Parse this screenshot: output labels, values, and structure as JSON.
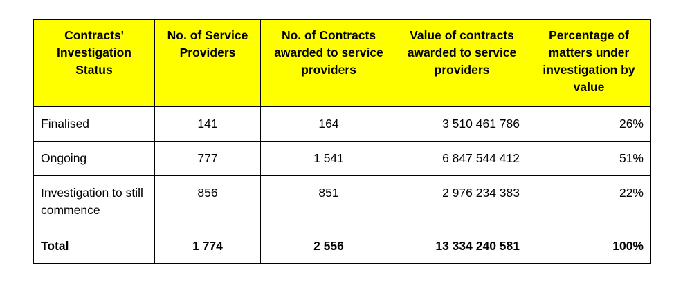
{
  "table": {
    "headers": [
      "Contracts' Investigation Status",
      "No. of Service Providers",
      "No. of Contracts awarded to service providers",
      "Value of contracts awarded to service providers",
      "Percentage of matters under investigation by value"
    ],
    "rows": [
      {
        "status": "Finalised",
        "providers": "141",
        "contracts": "164",
        "value": "3 510 461 786",
        "percent": "26%"
      },
      {
        "status": "Ongoing",
        "providers": "777",
        "contracts": "1 541",
        "value": "6 847 544 412",
        "percent": "51%"
      },
      {
        "status": "Investigation to still commence",
        "providers": "856",
        "contracts": "851",
        "value": "2 976 234 383",
        "percent": "22%"
      }
    ],
    "total": {
      "status": "Total",
      "providers": "1 774",
      "contracts": "2 556",
      "value": "13 334 240 581",
      "percent": "100%"
    }
  },
  "colors": {
    "header_background": "#ffff00",
    "border": "#000000"
  }
}
